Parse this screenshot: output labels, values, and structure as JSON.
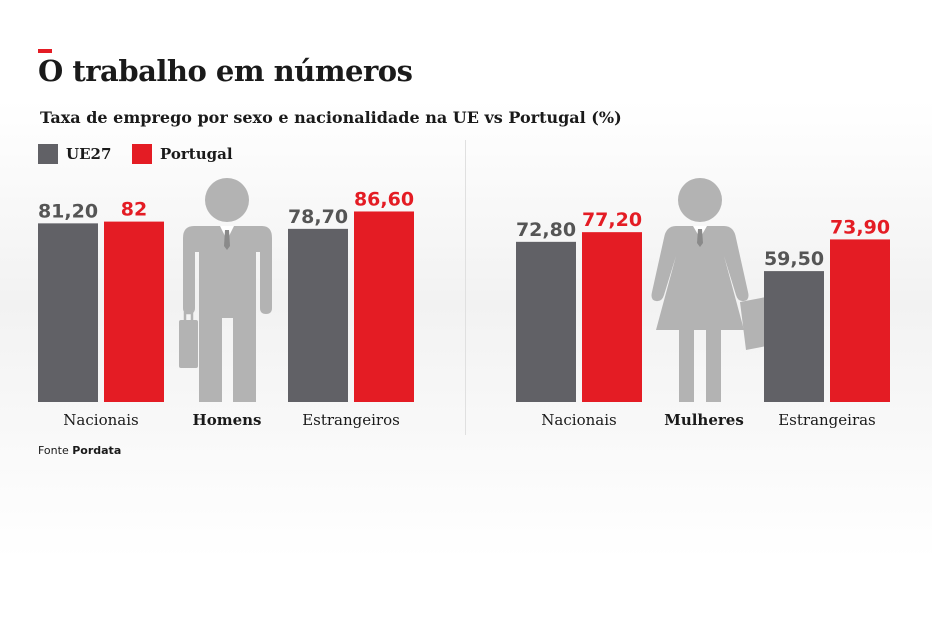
{
  "title": "O trabalho em números",
  "subtitle": "Taxa de emprego por sexo e nacionalidade na UE vs Portugal (%)",
  "legend": {
    "ue27": "UE27",
    "portugal": "Portugal"
  },
  "colors": {
    "ue27": "#616166",
    "portugal": "#e41c24",
    "figure": "#b3b3b3",
    "accent": "#e41c24"
  },
  "source": {
    "prefix": "Fonte",
    "name": "Pordata"
  },
  "chart_data": {
    "type": "bar",
    "series": [
      {
        "name": "UE27",
        "color": "#616166"
      },
      {
        "name": "Portugal",
        "color": "#e41c24"
      }
    ],
    "groups": [
      {
        "label": "Homens",
        "icon": "man-figure-icon",
        "categories": [
          {
            "label": "Nacionais",
            "values": [
              81.2
            ],
            "labels": [
              "81,20",
              "82"
            ],
            "portugal": 82
          },
          {
            "label": "Estrangeiros",
            "values": [
              78.7
            ],
            "labels": [
              "78,70",
              "86,60"
            ],
            "portugal": 86.6
          }
        ]
      },
      {
        "label": "Mulheres",
        "icon": "woman-figure-icon",
        "categories": [
          {
            "label": "Nacionais",
            "values": [
              72.8
            ],
            "labels": [
              "72,80",
              "77,20"
            ],
            "portugal": 77.2
          },
          {
            "label": "Estrangeiras",
            "values": [
              59.5
            ],
            "labels": [
              "59,50",
              "73,90"
            ],
            "portugal": 73.9
          }
        ]
      }
    ]
  }
}
